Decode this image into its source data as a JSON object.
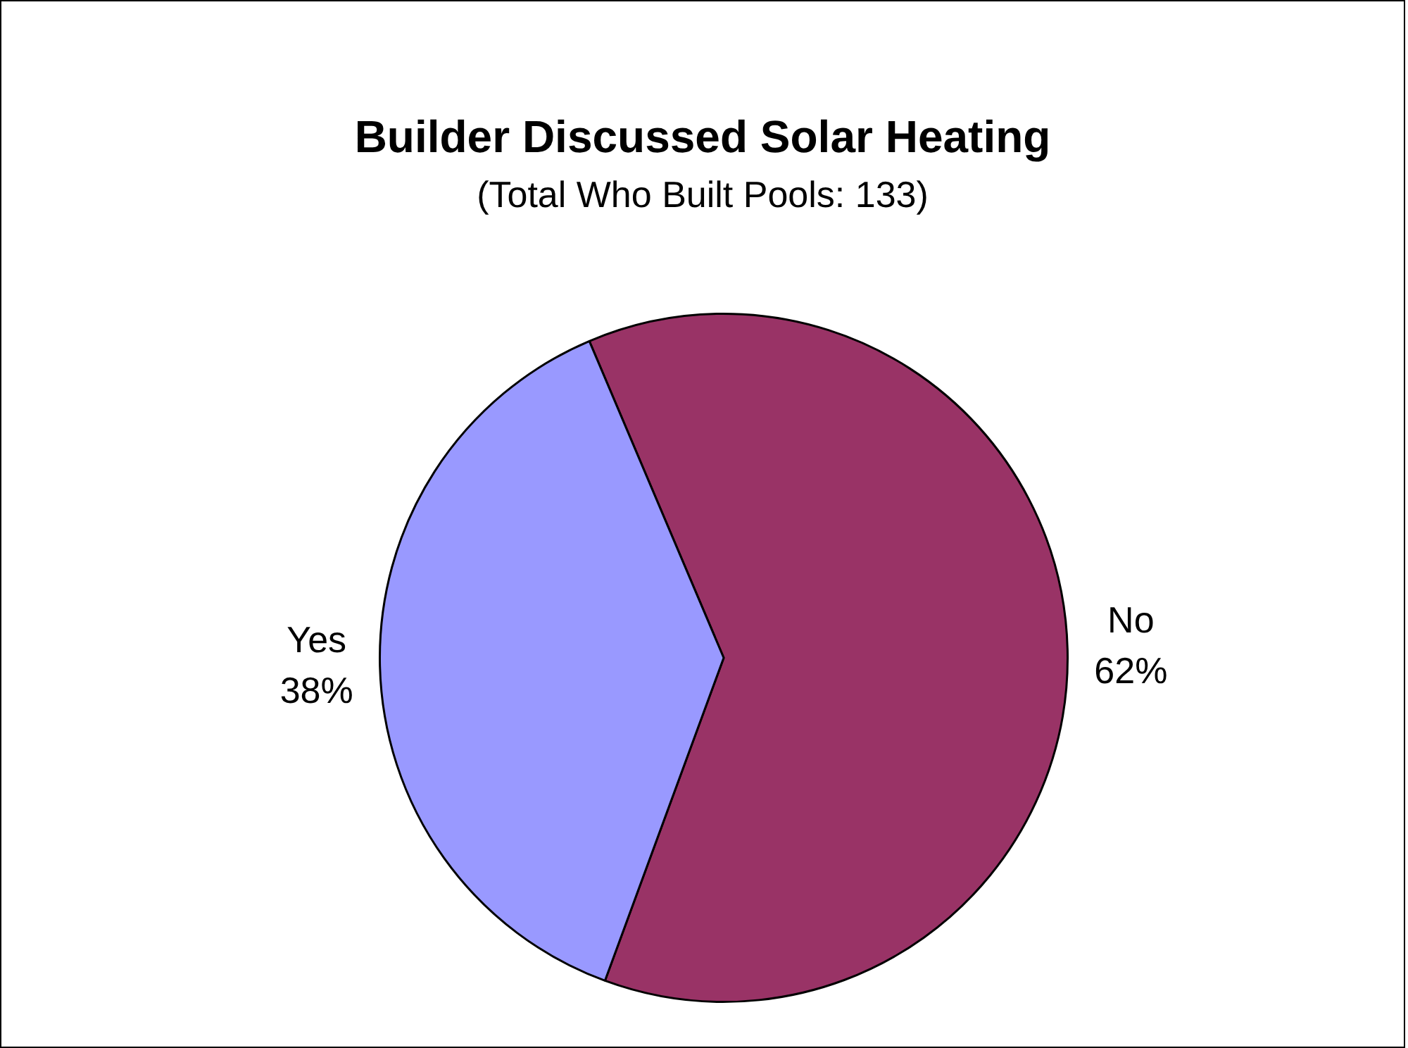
{
  "chart_data": {
    "type": "pie",
    "title": "Builder Discussed Solar Heating",
    "subtitle": "(Total Who Built Pools: 133)",
    "categories": [
      "No",
      "Yes"
    ],
    "values": [
      62,
      38
    ],
    "colors": [
      "#993366",
      "#9999ff"
    ],
    "value_labels": [
      "62%",
      "38%"
    ],
    "legend": false
  }
}
